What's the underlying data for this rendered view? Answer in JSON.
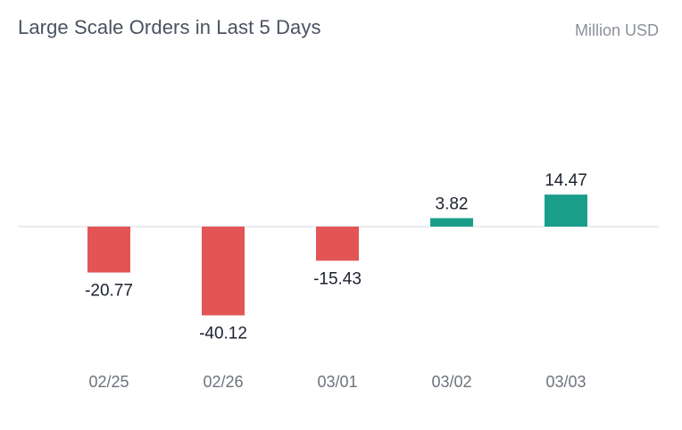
{
  "header": {
    "title": "Large Scale Orders in Last 5 Days",
    "unit": "Million USD"
  },
  "colors": {
    "negative": "#e35555",
    "positive": "#1a9e8a",
    "baseline": "#e4e6ea"
  },
  "chart_data": {
    "type": "bar",
    "title": "Large Scale Orders in Last 5 Days",
    "unit_label": "Million USD",
    "xlabel": "",
    "ylabel": "",
    "categories": [
      "02/25",
      "02/26",
      "03/01",
      "03/02",
      "03/03"
    ],
    "values": [
      -20.77,
      -40.12,
      -15.43,
      3.82,
      14.47
    ],
    "value_labels": [
      "-20.77",
      "-40.12",
      "-15.43",
      "3.82",
      "14.47"
    ],
    "grid": false,
    "legend": "none"
  }
}
